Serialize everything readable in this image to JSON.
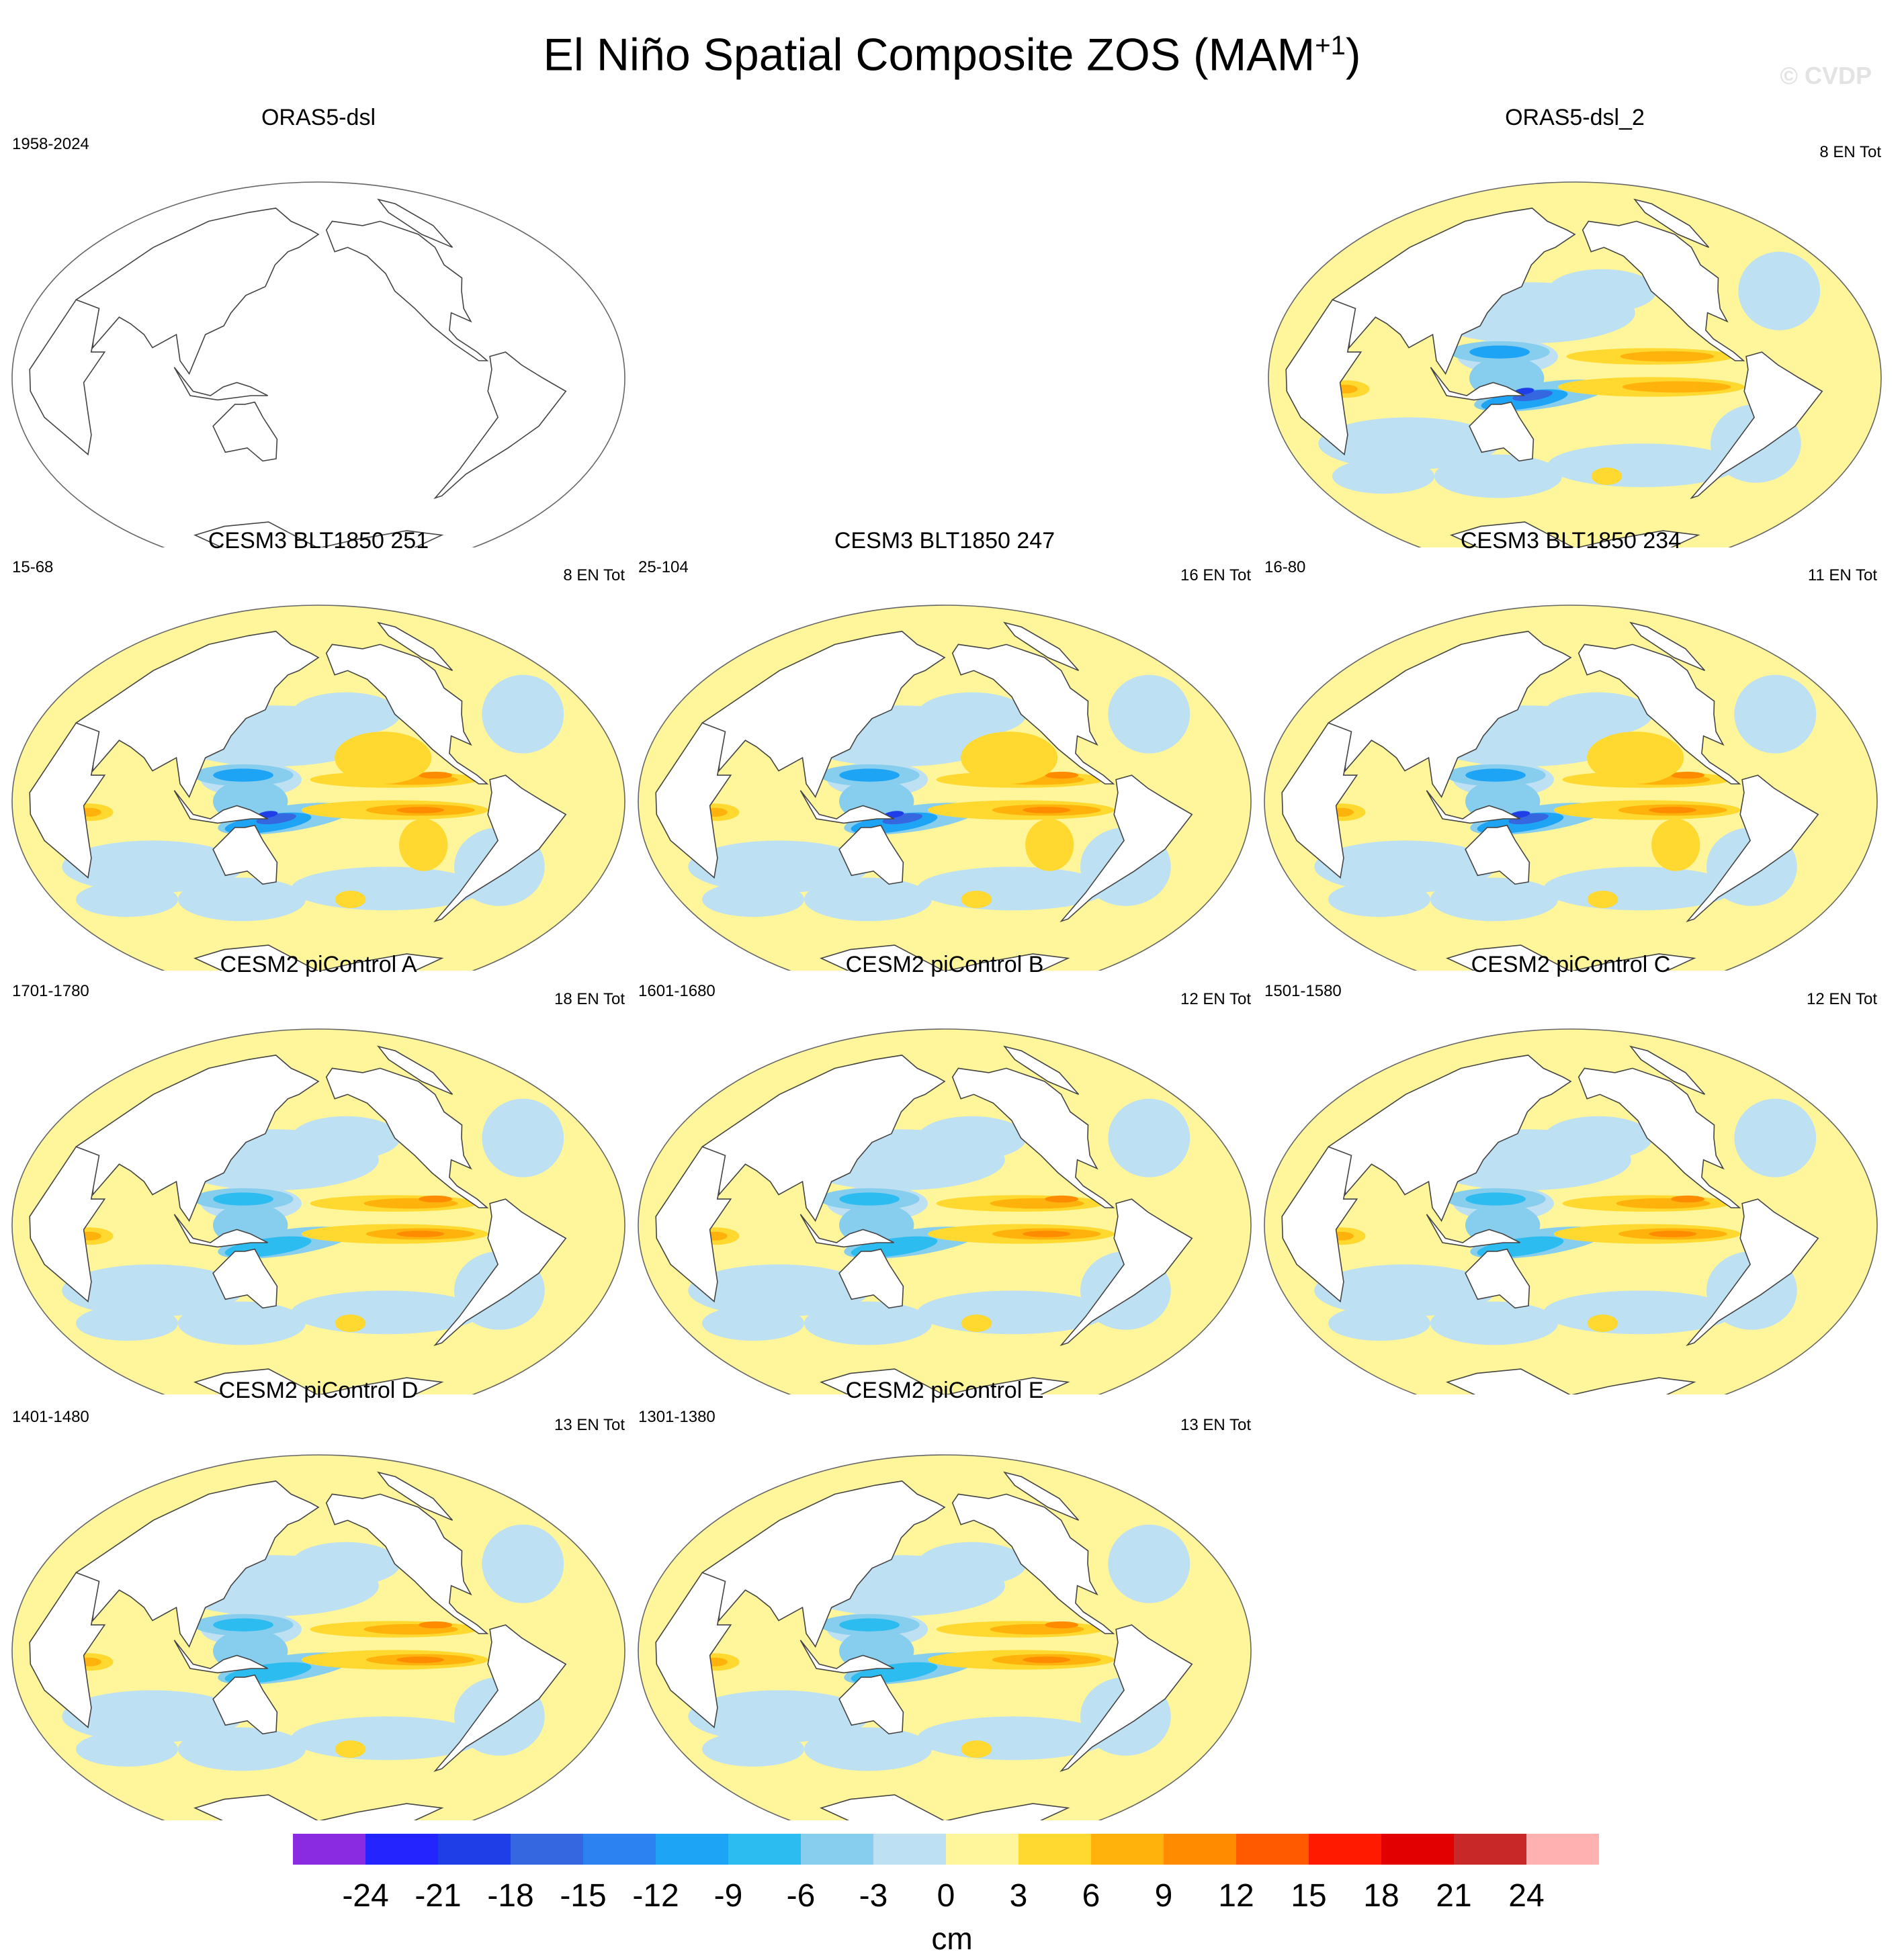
{
  "header": {
    "title": "El Niño Spatial Composite ZOS (MAM",
    "title_sup": "+1",
    "title_end": ")",
    "watermark": "© CVDP"
  },
  "panels": [
    {
      "id": "orasdsl",
      "title": "ORAS5-dsl",
      "period": "1958-2024",
      "events": "",
      "style": "empty"
    },
    {
      "id": "orasdsl2",
      "title": "ORAS5-dsl_2",
      "period": "",
      "events": "8 EN Tot",
      "style": "obs"
    },
    {
      "id": "blt251",
      "title": "CESM3 BLT1850 251",
      "period": "15-68",
      "events": "8 EN Tot",
      "style": "cesm3"
    },
    {
      "id": "blt247",
      "title": "CESM3 BLT1850 247",
      "period": "25-104",
      "events": "16 EN Tot",
      "style": "cesm3"
    },
    {
      "id": "blt234",
      "title": "CESM3 BLT1850 234",
      "period": "16-80",
      "events": "11 EN Tot",
      "style": "cesm3"
    },
    {
      "id": "pica",
      "title": "CESM2 piControl A",
      "period": "1701-1780",
      "events": "18 EN Tot",
      "style": "cesm2"
    },
    {
      "id": "picb",
      "title": "CESM2 piControl B",
      "period": "1601-1680",
      "events": "12 EN Tot",
      "style": "cesm2"
    },
    {
      "id": "picc",
      "title": "CESM2 piControl C",
      "period": "1501-1580",
      "events": "12 EN Tot",
      "style": "cesm2"
    },
    {
      "id": "picd",
      "title": "CESM2 piControl D",
      "period": "1401-1480",
      "events": "13 EN Tot",
      "style": "cesm2"
    },
    {
      "id": "pice",
      "title": "CESM2 piControl E",
      "period": "1301-1380",
      "events": "13 EN Tot",
      "style": "cesm2"
    }
  ],
  "colorbar": {
    "unit": "cm",
    "labels": [
      "-24",
      "-21",
      "-18",
      "-15",
      "-12",
      "-9",
      "-6",
      "-3",
      "0",
      "3",
      "6",
      "9",
      "12",
      "15",
      "18",
      "21",
      "24"
    ],
    "colors": [
      "#8a2be2",
      "#2424ff",
      "#1f3ee8",
      "#3568e0",
      "#2b82f0",
      "#1ea4f4",
      "#2cbcf0",
      "#86cdee",
      "#bde0f2",
      "#fff59a",
      "#ffd830",
      "#ffb20c",
      "#ff8c00",
      "#ff5a00",
      "#ff1a00",
      "#e20000",
      "#c92828",
      "#ffb0b0"
    ]
  }
}
